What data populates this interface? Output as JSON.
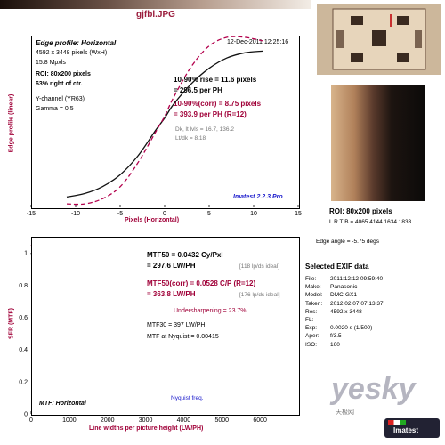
{
  "header": {
    "filename": "gjfbl.JPG"
  },
  "edge_panel": {
    "title": "Edge profile: Horizontal",
    "timestamp": "12-Dec-2011 12:25:16",
    "pixels": "4592 x 3448 pixels (WxH)",
    "mpxls": "15.8 Mpxls",
    "roi": "ROI: 80x200 pixels",
    "pct_right": "63% right of ctr.",
    "channel": "Y-channel  (YR63)",
    "gamma": "Gamma = 0.5",
    "rise_1": "10-90% rise = 11.6 pixels",
    "rise_2": "= 296.5 per PH",
    "corr_1": "10-90%(corr) = 8.75 pixels",
    "corr_2": "= 393.9 per PH  (R=12)",
    "dk": "Dk, lt lvls = 16.7, 136.2",
    "lt": "Lt/dk = 8.18",
    "version": "Imatest 2.2.3 Pro",
    "ylabel": "Edge profile (linear)",
    "xlabel": "Pixels (Horizontal)"
  },
  "mtf_panel": {
    "mtf50_1": "MTF50 = 0.0432 Cy/Pxl",
    "mtf50_2": "= 297.6 LW/PH",
    "ideal_1": "[118 lp/ds ideal]",
    "corr_1": "MTF50(corr) = 0.0528 C/P  (R=12)",
    "corr_2": "= 363.8 LW/PH",
    "ideal_2": "[176 lp/ds ideal]",
    "undersharp": "Undersharpening = 23.7%",
    "mtf30": "MTF30 = 397 LW/PH",
    "nyq_mtf": "MTF at Nyquist = 0.00415",
    "nyq_label": "Nyquist freq.",
    "panel_label": "MTF: Horizontal",
    "ylabel": "SFR (MTF)",
    "xlabel": "Line widths per picture height (LW/PH)"
  },
  "right_panel": {
    "roi_title": "ROI: 80x200 pixels",
    "lrtb": "L R T B = 4065 4144  1634 1833",
    "edge_angle": "Edge angle = -5.75 degs",
    "exif_title": "Selected EXIF data",
    "exif": [
      {
        "k": "File:",
        "v": "2011:12:12 09:59:40"
      },
      {
        "k": "Make:",
        "v": "Panasonic"
      },
      {
        "k": "Model:",
        "v": "DMC-GX1"
      },
      {
        "k": "Taken:",
        "v": "2012:02:07 07:13:37"
      },
      {
        "k": "Res:",
        "v": "4592 x 3448"
      },
      {
        "k": "FL:",
        "v": ""
      },
      {
        "k": "Exp:",
        "v": "0.0020 s  (1/500)"
      },
      {
        "k": "Aper:",
        "v": "f/3.5"
      },
      {
        "k": "ISO:",
        "v": "160"
      }
    ]
  },
  "watermark": {
    "text": "yesky",
    "sub": "天极网",
    "badge": "Imatest"
  },
  "chart_data": [
    {
      "type": "line",
      "title": "Edge profile: Horizontal",
      "xlabel": "Pixels (Horizontal)",
      "ylabel": "Edge profile (linear)",
      "xlim": [
        -15,
        15
      ],
      "ylim": [
        0,
        1
      ],
      "xticks": [
        "-15",
        "-10",
        "-5",
        "0",
        "5",
        "10",
        "15"
      ],
      "series": [
        {
          "name": "",
          "x": [
            -11,
            -9,
            -7,
            -5,
            -3,
            -1,
            0,
            1,
            3,
            5,
            7,
            9,
            11
          ],
          "y": [
            0.06,
            0.08,
            0.12,
            0.19,
            0.3,
            0.45,
            0.52,
            0.6,
            0.72,
            0.81,
            0.87,
            0.9,
            0.91
          ]
        },
        {
          "name": "",
          "x": [
            -11,
            -9,
            -7,
            -5,
            -3,
            -1,
            0,
            1,
            3,
            5,
            7,
            9,
            11
          ],
          "y": [
            0.02,
            0.02,
            0.05,
            0.12,
            0.26,
            0.44,
            0.53,
            0.64,
            0.82,
            0.94,
            0.99,
            0.99,
            0.97
          ]
        }
      ]
    },
    {
      "type": "line",
      "title": "MTF: Horizontal",
      "xlabel": "Line widths per picture height (LW/PH)",
      "ylabel": "SFR (MTF)",
      "xlim": [
        0,
        7000
      ],
      "ylim": [
        0,
        1.1
      ],
      "xticks": [
        "0",
        "1000",
        "2000",
        "3000",
        "4000",
        "5000",
        "6000"
      ],
      "yticks": [
        "0",
        "0.2",
        "0.4",
        "0.6",
        "0.8",
        "1"
      ],
      "series": [
        {
          "name": "",
          "x": [
            0,
            100,
            200,
            300,
            400,
            500,
            700,
            1000,
            1500,
            2000,
            3000,
            4000,
            5000,
            6000,
            7000
          ],
          "y": [
            1.0,
            0.92,
            0.72,
            0.5,
            0.3,
            0.16,
            0.06,
            0.04,
            0.02,
            0.03,
            0.02,
            0.03,
            0.03,
            0.04,
            0.02
          ]
        },
        {
          "name": "",
          "x": [
            0,
            100,
            200,
            300,
            400,
            500,
            700,
            1000,
            1500,
            2000,
            3000,
            4000,
            5000,
            6000,
            7000
          ],
          "y": [
            1.05,
            1.02,
            0.85,
            0.6,
            0.36,
            0.2,
            0.07,
            0.05,
            0.03,
            0.04,
            0.03,
            0.04,
            0.05,
            0.06,
            0.03
          ]
        }
      ]
    }
  ]
}
